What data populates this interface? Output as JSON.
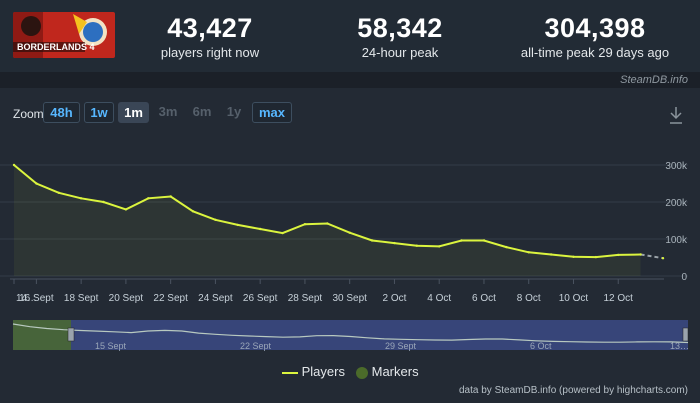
{
  "stats": [
    {
      "value": "43,427",
      "label": "players right now"
    },
    {
      "value": "58,342",
      "label": "24-hour peak"
    },
    {
      "value": "304,398",
      "label": "all-time peak 29 days ago"
    }
  ],
  "game_logo_text": "BORDERLANDS 4",
  "watermark": "SteamDB.info",
  "zoom": {
    "label": "Zoom",
    "buttons": [
      {
        "label": "48h",
        "state": "enabled"
      },
      {
        "label": "1w",
        "state": "enabled"
      },
      {
        "label": "1m",
        "state": "selected"
      },
      {
        "label": "3m",
        "state": "disabled"
      },
      {
        "label": "6m",
        "state": "disabled"
      },
      {
        "label": "1y",
        "state": "disabled"
      },
      {
        "label": "max",
        "state": "enabled"
      }
    ]
  },
  "download_icon": "download-icon",
  "legend": {
    "players": "Players",
    "markers": "Markers"
  },
  "credits": "data by SteamDB.info (powered by highcharts.com)",
  "colors": {
    "players_line": "#dbf43e",
    "markers": "#4b6b2a",
    "navigator_bg": "#3b4a86"
  },
  "chart_data": {
    "type": "line",
    "x": [
      "14…",
      "15 Sept",
      "16 Sept",
      "17 Sept",
      "18 Sept",
      "19 Sept",
      "20 Sept",
      "21 Sept",
      "22 Sept",
      "23 Sept",
      "24 Sept",
      "25 Sept",
      "26 Sept",
      "27 Sept",
      "28 Sept",
      "29 Sept",
      "30 Sept",
      "1 Oct",
      "2 Oct",
      "3 Oct",
      "4 Oct",
      "5 Oct",
      "6 Oct",
      "7 Oct",
      "8 Oct",
      "9 Oct",
      "10 Oct",
      "11 Oct",
      "12 Oct",
      "13 Oct"
    ],
    "series": [
      {
        "name": "Players",
        "values": [
          300000,
          250000,
          225000,
          210000,
          200000,
          180000,
          210000,
          215000,
          175000,
          152000,
          138000,
          127000,
          116000,
          140000,
          142000,
          117000,
          96000,
          89000,
          82000,
          80000,
          96000,
          96000,
          78000,
          64000,
          58000,
          52000,
          51000,
          57000,
          58000,
          48000
        ]
      }
    ],
    "ylim": [
      0,
      300000
    ],
    "y_ticks": [
      "0",
      "100k",
      "200k",
      "300k"
    ],
    "x_tick_labels": [
      "14…",
      "16 Sept",
      "18 Sept",
      "20 Sept",
      "22 Sept",
      "24 Sept",
      "26 Sept",
      "28 Sept",
      "30 Sept",
      "2 Oct",
      "4 Oct",
      "6 Oct",
      "8 Oct",
      "10 Oct",
      "12 Oct"
    ],
    "navigator_labels": [
      "15 Sept",
      "22 Sept",
      "29 Sept",
      "6 Oct",
      "13…"
    ],
    "grid": true,
    "legend_position": "bottom-center"
  }
}
